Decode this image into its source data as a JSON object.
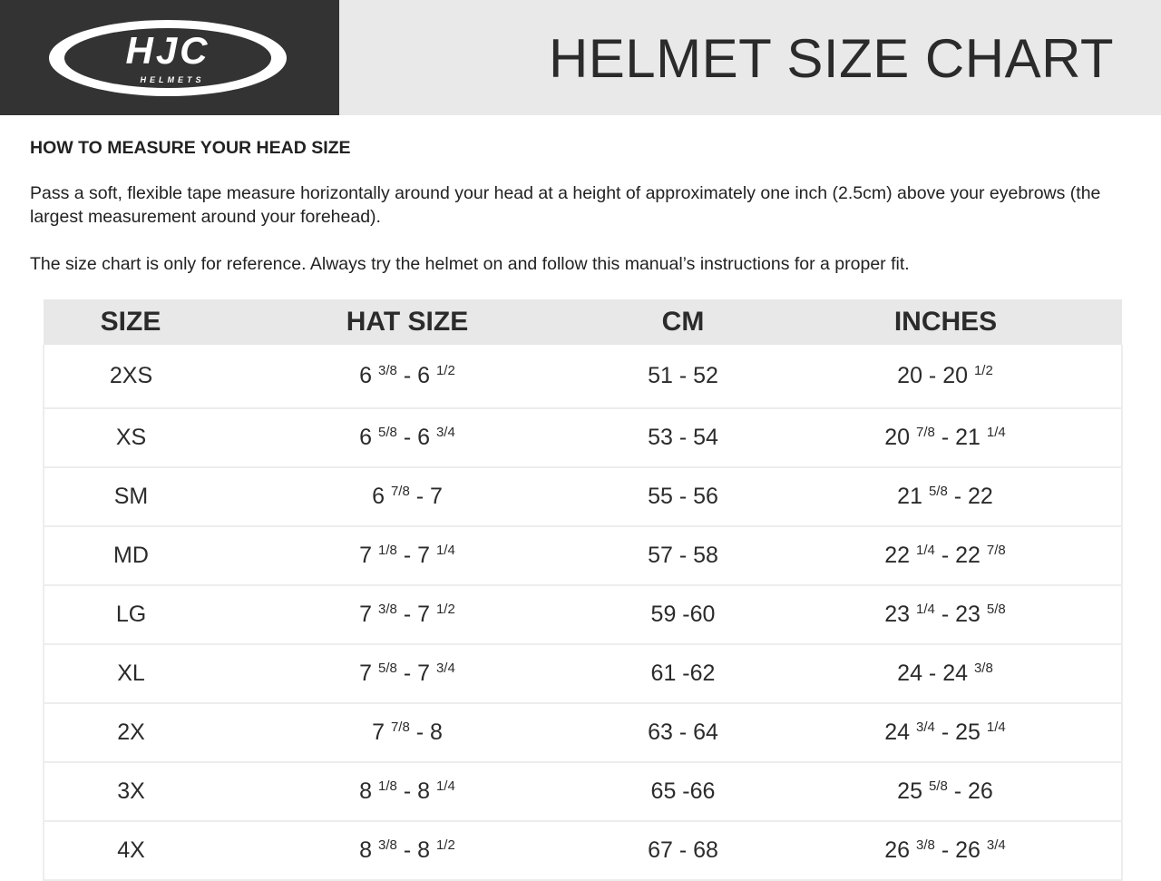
{
  "header": {
    "logo_text": "HJC",
    "logo_subtext": "HELMETS",
    "title": "HELMET SIZE CHART"
  },
  "colors": {
    "header_dark": "#333333",
    "header_light": "#e9e9e9",
    "table_header": "#e8e8e8"
  },
  "intro": {
    "heading": "HOW TO MEASURE YOUR HEAD SIZE",
    "paragraph1": "Pass a soft, flexible tape measure horizontally around your head at a height of approximately one inch (2.5cm) above your eyebrows (the largest measurement around your forehead).",
    "paragraph2": "The size chart is only for reference. Always try the helmet on and follow this manual’s instructions for a proper fit."
  },
  "table": {
    "columns": [
      "SIZE",
      "HAT SIZE",
      "CM",
      "INCHES"
    ],
    "rows": [
      {
        "size": "2XS",
        "hat": {
          "w1": "6",
          "f1": "3/8",
          "w2": "6",
          "f2": "1/2"
        },
        "cm": "51 - 52",
        "in": {
          "w1": "20",
          "f1": "",
          "w2": "20",
          "f2": "1/2"
        }
      },
      {
        "size": "XS",
        "hat": {
          "w1": "6",
          "f1": "5/8",
          "w2": "6",
          "f2": "3/4"
        },
        "cm": "53 - 54",
        "in": {
          "w1": "20",
          "f1": "7/8",
          "w2": "21",
          "f2": "1/4"
        }
      },
      {
        "size": "SM",
        "hat": {
          "w1": "6",
          "f1": "7/8",
          "w2": "7",
          "f2": ""
        },
        "cm": "55 - 56",
        "in": {
          "w1": "21",
          "f1": "5/8",
          "w2": "22",
          "f2": ""
        }
      },
      {
        "size": "MD",
        "hat": {
          "w1": "7",
          "f1": "1/8",
          "w2": "7",
          "f2": "1/4"
        },
        "cm": "57 - 58",
        "in": {
          "w1": "22",
          "f1": "1/4",
          "w2": "22",
          "f2": "7/8"
        }
      },
      {
        "size": "LG",
        "hat": {
          "w1": "7",
          "f1": "3/8",
          "w2": "7",
          "f2": "1/2"
        },
        "cm": "59 -60",
        "in": {
          "w1": "23",
          "f1": "1/4",
          "w2": "23",
          "f2": "5/8"
        }
      },
      {
        "size": "XL",
        "hat": {
          "w1": "7",
          "f1": "5/8",
          "w2": "7",
          "f2": "3/4"
        },
        "cm": "61 -62",
        "in": {
          "w1": "24",
          "f1": "",
          "w2": "24",
          "f2": "3/8"
        }
      },
      {
        "size": "2X",
        "hat": {
          "w1": "7",
          "f1": "7/8",
          "w2": "8",
          "f2": ""
        },
        "cm": "63 - 64",
        "in": {
          "w1": "24",
          "f1": "3/4",
          "w2": "25",
          "f2": "1/4"
        }
      },
      {
        "size": "3X",
        "hat": {
          "w1": "8",
          "f1": "1/8",
          "w2": "8",
          "f2": "1/4"
        },
        "cm": "65 -66",
        "in": {
          "w1": "25",
          "f1": "5/8",
          "w2": "26",
          "f2": ""
        }
      },
      {
        "size": "4X",
        "hat": {
          "w1": "8",
          "f1": "3/8",
          "w2": "8",
          "f2": "1/2"
        },
        "cm": "67 - 68",
        "in": {
          "w1": "26",
          "f1": "3/8",
          "w2": "26",
          "f2": "3/4"
        }
      }
    ]
  }
}
